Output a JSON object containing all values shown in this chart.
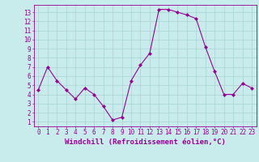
{
  "x": [
    0,
    1,
    2,
    3,
    4,
    5,
    6,
    7,
    8,
    9,
    10,
    11,
    12,
    13,
    14,
    15,
    16,
    17,
    18,
    19,
    20,
    21,
    22,
    23
  ],
  "y": [
    4.5,
    7.0,
    5.5,
    4.5,
    3.5,
    4.7,
    4.0,
    2.7,
    1.2,
    1.5,
    5.5,
    7.2,
    8.5,
    13.3,
    13.3,
    13.0,
    12.7,
    12.3,
    9.2,
    6.5,
    4.0,
    4.0,
    5.2,
    4.7
  ],
  "line_color": "#990099",
  "marker": "D",
  "marker_size": 2,
  "bg_color": "#c8ecec",
  "grid_color": "#a8d4d4",
  "xlabel": "Windchill (Refroidissement éolien,°C)",
  "xlabel_color": "#990099",
  "tick_color": "#990099",
  "xlim": [
    -0.5,
    23.5
  ],
  "ylim": [
    0.5,
    13.8
  ],
  "yticks": [
    1,
    2,
    3,
    4,
    5,
    6,
    7,
    8,
    9,
    10,
    11,
    12,
    13
  ],
  "xticks": [
    0,
    1,
    2,
    3,
    4,
    5,
    6,
    7,
    8,
    9,
    10,
    11,
    12,
    13,
    14,
    15,
    16,
    17,
    18,
    19,
    20,
    21,
    22,
    23
  ],
  "font_size": 5.5,
  "label_font_size": 6.5
}
